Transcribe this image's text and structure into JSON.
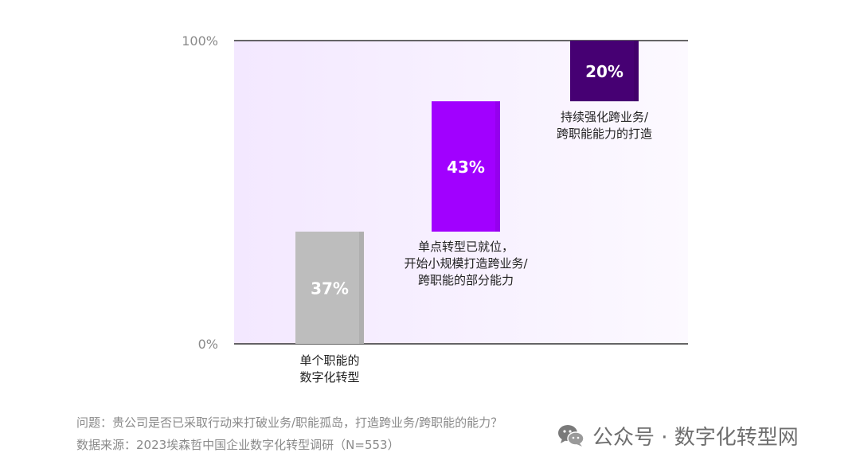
{
  "chart_data": {
    "type": "waterfall",
    "categories": [
      [
        "单个职能的",
        "数字化转型"
      ],
      [
        "单点转型已就位，",
        "开始小规模打造跨业务/",
        "跨职能的部分能力"
      ],
      [
        "持续强化跨业务/",
        "跨职能能力的打造"
      ]
    ],
    "values": [
      37,
      43,
      20
    ],
    "value_labels": [
      "37%",
      "43%",
      "20%"
    ],
    "y_tick_labels": [
      "100%",
      "0%"
    ],
    "ylim": [
      0,
      100
    ],
    "colors": {
      "bar_1": "#bdbdbd",
      "bar_2": "#a100ff",
      "bar_3": "#460073",
      "plot_bg": "#f7efff"
    }
  },
  "footnotes": {
    "question": "问题：贵公司是否已采取行动来打破业务/职能孤岛，打造跨业务/跨职能的能力？",
    "source": "数据来源：2023埃森哲中国企业数字化转型调研（N=553）"
  },
  "watermark": {
    "icon": "wechat-icon",
    "text": "公众号 · 数字化转型网"
  }
}
